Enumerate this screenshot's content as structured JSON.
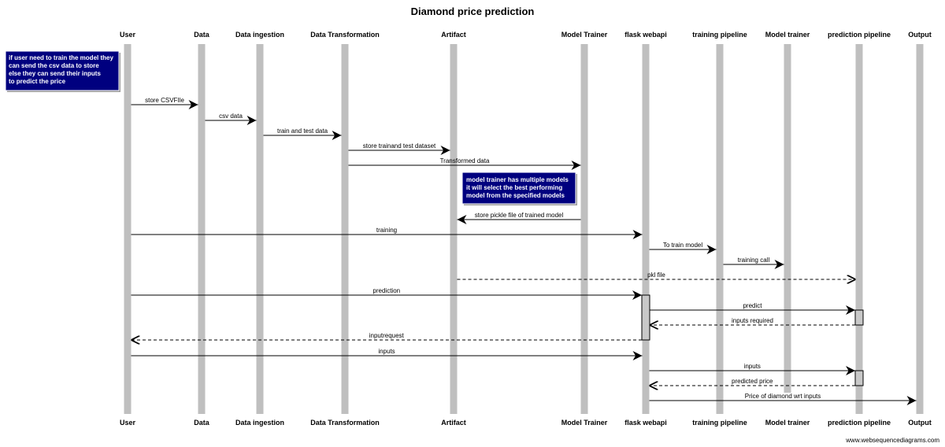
{
  "title": "Diamond price prediction",
  "footer": "www.websequencediagrams.com",
  "colors": {
    "lifeline": "#bfbfbf",
    "note_bg": "#00007f",
    "activation": "#c8c8c8",
    "line": "#000000"
  },
  "participants": [
    {
      "id": "user",
      "label": "User"
    },
    {
      "id": "data",
      "label": "Data"
    },
    {
      "id": "ingestion",
      "label": "Data ingestion"
    },
    {
      "id": "transformation",
      "label": "Data Transformation"
    },
    {
      "id": "artifact",
      "label": "Artifact"
    },
    {
      "id": "model_trainer",
      "label": "Model Trainer"
    },
    {
      "id": "flask",
      "label": "flask webapi"
    },
    {
      "id": "training_pipeline",
      "label": "training pipeline"
    },
    {
      "id": "model_trainer2",
      "label": "Model trainer"
    },
    {
      "id": "prediction_pipeline",
      "label": "prediction pipeline"
    },
    {
      "id": "output",
      "label": "Output"
    }
  ],
  "notes": [
    {
      "lines": [
        "if user need to train the model they",
        "can send the csv data to store",
        "else they can send their inputs",
        "to predict the price"
      ]
    },
    {
      "lines": [
        "model trainer has multiple models",
        "it will select the best performing",
        "model from the specified models"
      ]
    }
  ],
  "messages": [
    {
      "from": "user",
      "to": "data",
      "label": "store CSVFIle",
      "dashed": false
    },
    {
      "from": "data",
      "to": "ingestion",
      "label": "csv data",
      "dashed": false
    },
    {
      "from": "ingestion",
      "to": "transformation",
      "label": "train and test data",
      "dashed": false
    },
    {
      "from": "transformation",
      "to": "artifact",
      "label": "store trainand test dataset",
      "dashed": false
    },
    {
      "from": "transformation",
      "to": "model_trainer",
      "label": "Transformed data",
      "dashed": false
    },
    {
      "from": "model_trainer",
      "to": "artifact",
      "label": "store pickle file of trained model",
      "dashed": false
    },
    {
      "from": "user",
      "to": "flask",
      "label": "training",
      "dashed": false
    },
    {
      "from": "flask",
      "to": "training_pipeline",
      "label": "To train model",
      "dashed": false
    },
    {
      "from": "training_pipeline",
      "to": "model_trainer2",
      "label": "training call",
      "dashed": false
    },
    {
      "from": "artifact",
      "to": "prediction_pipeline",
      "label": "pkl file",
      "dashed": true
    },
    {
      "from": "user",
      "to": "flask",
      "label": "prediction",
      "dashed": false
    },
    {
      "from": "flask",
      "to": "prediction_pipeline",
      "label": "predict",
      "dashed": false
    },
    {
      "from": "prediction_pipeline",
      "to": "flask",
      "label": "inputs required",
      "dashed": true
    },
    {
      "from": "flask",
      "to": "user",
      "label": "inputrequest",
      "dashed": true
    },
    {
      "from": "user",
      "to": "flask",
      "label": "inputs",
      "dashed": false
    },
    {
      "from": "flask",
      "to": "prediction_pipeline",
      "label": "inputs",
      "dashed": false
    },
    {
      "from": "prediction_pipeline",
      "to": "flask",
      "label": "predicted price",
      "dashed": true
    },
    {
      "from": "flask",
      "to": "output",
      "label": "Price of diamond wrt inputs",
      "dashed": false
    }
  ]
}
